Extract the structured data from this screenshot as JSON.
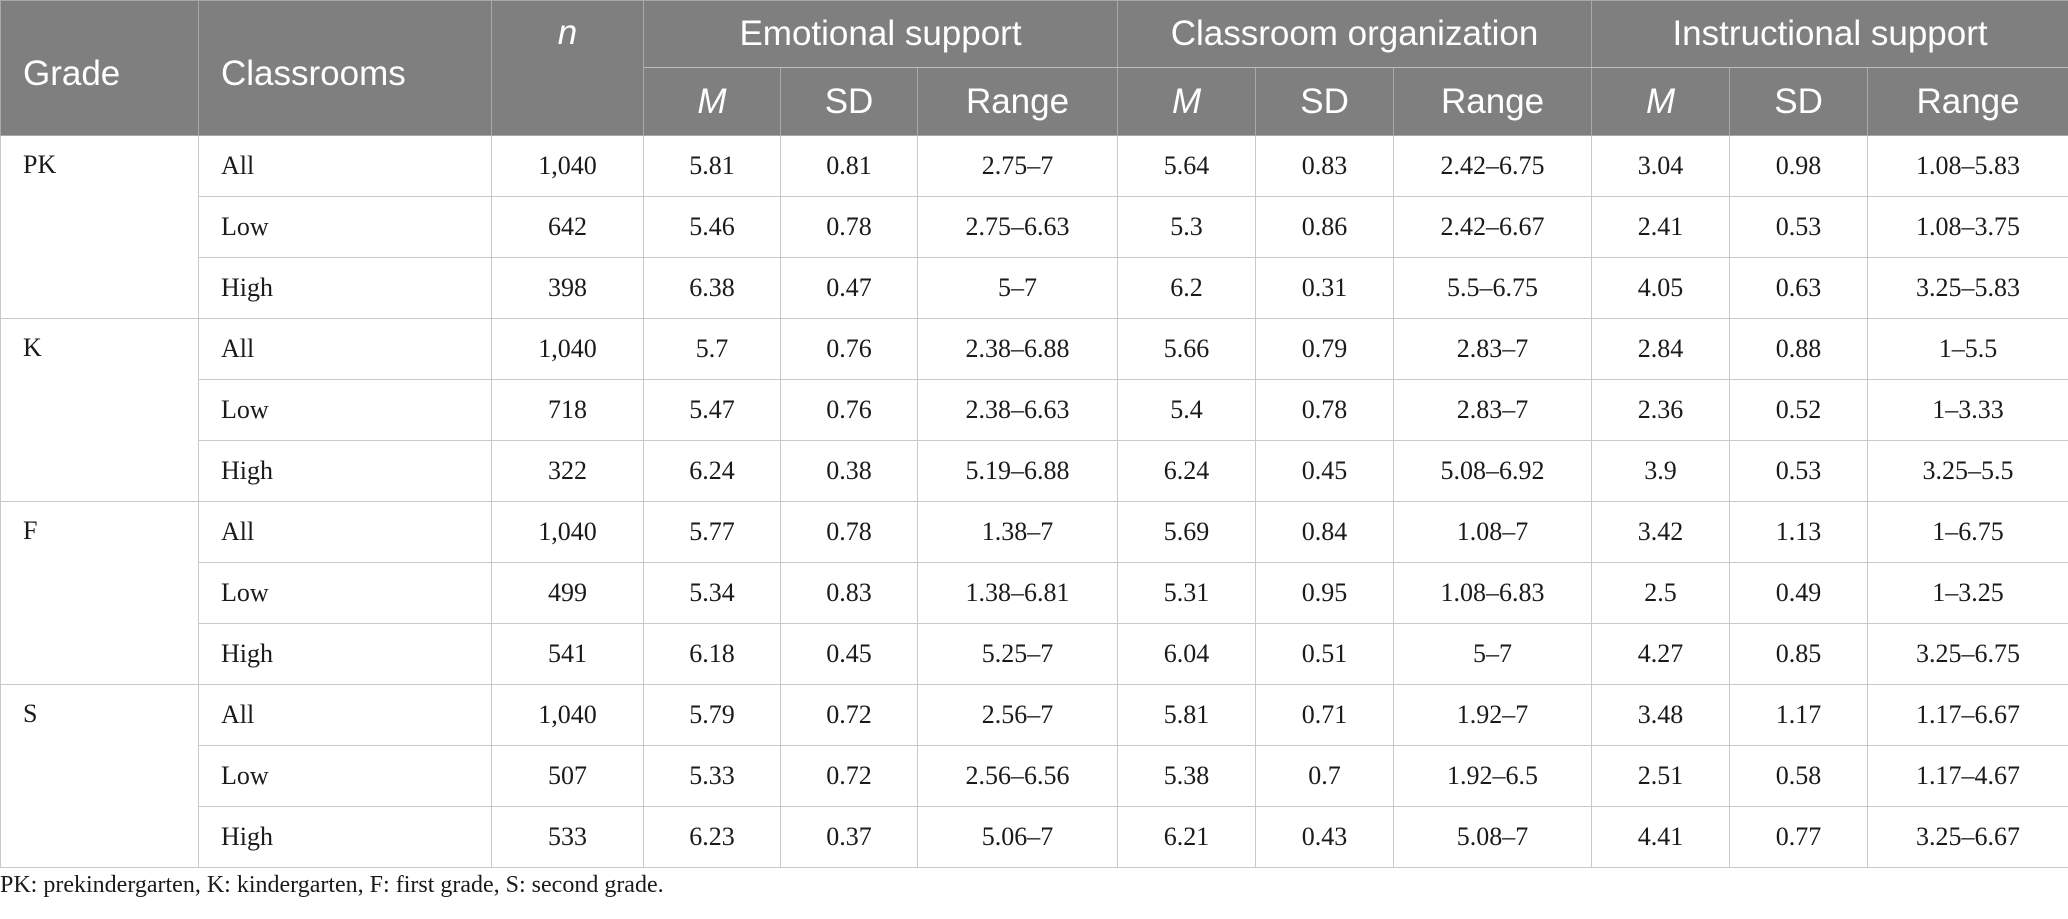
{
  "header": {
    "grade": "Grade",
    "classrooms": "Classrooms",
    "n": "n",
    "groups": [
      "Emotional support",
      "Classroom organization",
      "Instructional support"
    ],
    "sub": [
      "M",
      "SD",
      "Range"
    ]
  },
  "groups": [
    {
      "grade": "PK",
      "rows": [
        {
          "classroom": "All",
          "n": "1,040",
          "es_m": "5.81",
          "es_sd": "0.81",
          "es_r": "2.75–7",
          "co_m": "5.64",
          "co_sd": "0.83",
          "co_r": "2.42–6.75",
          "is_m": "3.04",
          "is_sd": "0.98",
          "is_r": "1.08–5.83"
        },
        {
          "classroom": "Low",
          "n": "642",
          "es_m": "5.46",
          "es_sd": "0.78",
          "es_r": "2.75–6.63",
          "co_m": "5.3",
          "co_sd": "0.86",
          "co_r": "2.42–6.67",
          "is_m": "2.41",
          "is_sd": "0.53",
          "is_r": "1.08–3.75"
        },
        {
          "classroom": "High",
          "n": "398",
          "es_m": "6.38",
          "es_sd": "0.47",
          "es_r": "5–7",
          "co_m": "6.2",
          "co_sd": "0.31",
          "co_r": "5.5–6.75",
          "is_m": "4.05",
          "is_sd": "0.63",
          "is_r": "3.25–5.83"
        }
      ]
    },
    {
      "grade": "K",
      "rows": [
        {
          "classroom": "All",
          "n": "1,040",
          "es_m": "5.7",
          "es_sd": "0.76",
          "es_r": "2.38–6.88",
          "co_m": "5.66",
          "co_sd": "0.79",
          "co_r": "2.83–7",
          "is_m": "2.84",
          "is_sd": "0.88",
          "is_r": "1–5.5"
        },
        {
          "classroom": "Low",
          "n": "718",
          "es_m": "5.47",
          "es_sd": "0.76",
          "es_r": "2.38–6.63",
          "co_m": "5.4",
          "co_sd": "0.78",
          "co_r": "2.83–7",
          "is_m": "2.36",
          "is_sd": "0.52",
          "is_r": "1–3.33"
        },
        {
          "classroom": "High",
          "n": "322",
          "es_m": "6.24",
          "es_sd": "0.38",
          "es_r": "5.19–6.88",
          "co_m": "6.24",
          "co_sd": "0.45",
          "co_r": "5.08–6.92",
          "is_m": "3.9",
          "is_sd": "0.53",
          "is_r": "3.25–5.5"
        }
      ]
    },
    {
      "grade": "F",
      "rows": [
        {
          "classroom": "All",
          "n": "1,040",
          "es_m": "5.77",
          "es_sd": "0.78",
          "es_r": "1.38–7",
          "co_m": "5.69",
          "co_sd": "0.84",
          "co_r": "1.08–7",
          "is_m": "3.42",
          "is_sd": "1.13",
          "is_r": "1–6.75"
        },
        {
          "classroom": "Low",
          "n": "499",
          "es_m": "5.34",
          "es_sd": "0.83",
          "es_r": "1.38–6.81",
          "co_m": "5.31",
          "co_sd": "0.95",
          "co_r": "1.08–6.83",
          "is_m": "2.5",
          "is_sd": "0.49",
          "is_r": "1–3.25"
        },
        {
          "classroom": "High",
          "n": "541",
          "es_m": "6.18",
          "es_sd": "0.45",
          "es_r": "5.25–7",
          "co_m": "6.04",
          "co_sd": "0.51",
          "co_r": "5–7",
          "is_m": "4.27",
          "is_sd": "0.85",
          "is_r": "3.25–6.75"
        }
      ]
    },
    {
      "grade": "S",
      "rows": [
        {
          "classroom": "All",
          "n": "1,040",
          "es_m": "5.79",
          "es_sd": "0.72",
          "es_r": "2.56–7",
          "co_m": "5.81",
          "co_sd": "0.71",
          "co_r": "1.92–7",
          "is_m": "3.48",
          "is_sd": "1.17",
          "is_r": "1.17–6.67"
        },
        {
          "classroom": "Low",
          "n": "507",
          "es_m": "5.33",
          "es_sd": "0.72",
          "es_r": "2.56–6.56",
          "co_m": "5.38",
          "co_sd": "0.7",
          "co_r": "1.92–6.5",
          "is_m": "2.51",
          "is_sd": "0.58",
          "is_r": "1.17–4.67"
        },
        {
          "classroom": "High",
          "n": "533",
          "es_m": "6.23",
          "es_sd": "0.37",
          "es_r": "5.06–7",
          "co_m": "6.21",
          "co_sd": "0.43",
          "co_r": "5.08–7",
          "is_m": "4.41",
          "is_sd": "0.77",
          "is_r": "3.25–6.67"
        }
      ]
    }
  ],
  "footnote": "PK: prekindergarten, K: kindergarten, F: first grade, S: second grade."
}
